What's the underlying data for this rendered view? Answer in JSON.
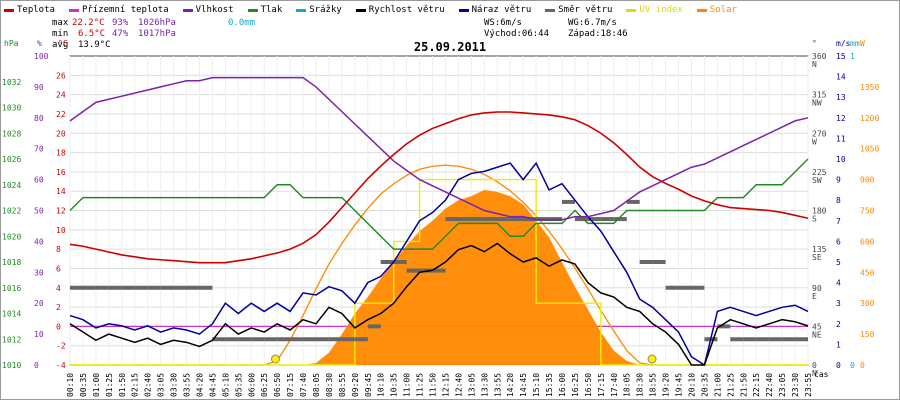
{
  "legend": [
    {
      "label": "Teplota",
      "color": "#cc0000"
    },
    {
      "label": "Přízemní teplota",
      "color": "#cc33cc"
    },
    {
      "label": "Vlhkost",
      "color": "#7a22aa"
    },
    {
      "label": "Tlak",
      "color": "#228822"
    },
    {
      "label": "Srážky",
      "color": "#11aacc"
    },
    {
      "label": "Rychlost větru",
      "color": "#000000"
    },
    {
      "label": "Náraz větru",
      "color": "#000099"
    },
    {
      "label": "Směr větru",
      "color": "#666666"
    },
    {
      "label": "UV index",
      "color": "#dddd00"
    },
    {
      "label": "Solar",
      "color": "#ff8800"
    }
  ],
  "stats": {
    "max_label": "max",
    "max_temp": "22.2°C",
    "max_hum": "93%",
    "max_press": "1026hPa",
    "max_rain": "0.0mm",
    "min_label": "min",
    "min_temp": "6.5°C",
    "min_hum": "47%",
    "min_press": "1017hPa",
    "avg_label": "avg",
    "avg_temp": "13.9°C",
    "ws": "WS:6m/s",
    "wg": "WG:6.7m/s",
    "sunrise": "Východ:06:44",
    "sunset": "Západ:18:46"
  },
  "colors": {
    "temp": "#cc0000",
    "hum": "#7a22aa",
    "press": "#228822",
    "gust": "#000099",
    "wind": "#000000",
    "dir": "#666666",
    "uv": "#eeee00",
    "solar": "#ff8800",
    "ground": "#cc33cc",
    "rain": "#11aacc",
    "sun": "#ffee00"
  },
  "chart_data": {
    "type": "line",
    "title": "25.09.2011",
    "xlabel": "čas",
    "x": [
      "00:10",
      "00:25",
      "00:50",
      "01:15",
      "01:40",
      "02:05",
      "02:30",
      "02:55",
      "03:20",
      "03:45",
      "04:10",
      "04:35",
      "05:00",
      "05:25",
      "05:50",
      "06:15",
      "06:40",
      "07:05",
      "07:30",
      "07:55",
      "08:20",
      "08:45",
      "09:10",
      "09:35",
      "10:00",
      "10:25",
      "10:50",
      "11:15",
      "11:40",
      "12:05",
      "12:30",
      "12:55",
      "13:20",
      "13:45",
      "14:10",
      "14:35",
      "15:00",
      "15:25",
      "15:50",
      "16:15",
      "16:40",
      "17:05",
      "17:30",
      "17:55",
      "18:20",
      "18:45",
      "19:10",
      "19:35",
      "20:00",
      "20:25",
      "20:50",
      "21:15",
      "21:40",
      "22:05",
      "22:30",
      "22:55",
      "23:20",
      "23:45"
    ],
    "x_ticks": [
      "00:10",
      "00:35",
      "01:00",
      "01:25",
      "01:50",
      "02:15",
      "02:40",
      "03:05",
      "03:30",
      "03:55",
      "04:20",
      "04:45",
      "05:10",
      "05:35",
      "06:00",
      "06:25",
      "06:50",
      "07:15",
      "07:40",
      "08:05",
      "08:30",
      "08:55",
      "09:20",
      "09:45",
      "10:10",
      "10:35",
      "11:00",
      "11:25",
      "11:50",
      "12:15",
      "12:40",
      "13:05",
      "13:30",
      "13:55",
      "14:20",
      "14:45",
      "15:10",
      "15:35",
      "16:00",
      "16:25",
      "16:50",
      "17:15",
      "17:40",
      "18:05",
      "18:30",
      "18:55",
      "19:20",
      "19:45",
      "20:10",
      "20:35",
      "21:00",
      "21:25",
      "21:50",
      "22:15",
      "22:40",
      "23:05",
      "23:30",
      "23:55"
    ],
    "axes": {
      "press": {
        "label": "hPa",
        "range": [
          1010,
          1034
        ],
        "ticks": [
          "1010",
          "1012",
          "1014",
          "1016",
          "1018",
          "1020",
          "1022",
          "1024",
          "1026",
          "1028",
          "1030",
          "1032"
        ]
      },
      "hum": {
        "label": "%",
        "range": [
          0,
          100
        ],
        "ticks": [
          "0",
          "10",
          "20",
          "30",
          "40",
          "50",
          "60",
          "70",
          "80",
          "90",
          "100"
        ]
      },
      "temp": {
        "label": "°C",
        "range": [
          -4,
          28
        ],
        "ticks": [
          "-4",
          "-2",
          "0",
          "2",
          "4",
          "6",
          "8",
          "10",
          "12",
          "14",
          "16",
          "18",
          "20",
          "22",
          "24",
          "26"
        ]
      },
      "dir": {
        "label": "°",
        "range": [
          0,
          360
        ],
        "ticks": [
          "0",
          "45",
          "90",
          "135",
          "180",
          "225",
          "270",
          "315",
          "360"
        ],
        "names": [
          "N",
          "NE",
          "E",
          "SE",
          "S",
          "SW",
          "W",
          "NW",
          "N"
        ]
      },
      "wind": {
        "label": "m/s",
        "range": [
          0,
          15
        ],
        "ticks": [
          "0",
          "1",
          "2",
          "3",
          "4",
          "5",
          "6",
          "7",
          "8",
          "9",
          "10",
          "11",
          "12",
          "13",
          "14",
          "15"
        ]
      },
      "rain": {
        "label": "mm",
        "range": [
          0,
          1
        ],
        "ticks": [
          "0",
          "1"
        ]
      },
      "solar": {
        "label": "W",
        "range": [
          0,
          1500
        ],
        "ticks": [
          "0",
          "150",
          "300",
          "450",
          "600",
          "750",
          "900",
          "1050",
          "1200",
          "1350",
          "1500"
        ]
      }
    },
    "series": [
      {
        "name": "Teplota",
        "axis": "temp",
        "values": [
          8.5,
          8.3,
          8.0,
          7.7,
          7.4,
          7.2,
          7.0,
          6.9,
          6.8,
          6.7,
          6.6,
          6.6,
          6.6,
          6.8,
          7.0,
          7.3,
          7.6,
          8.0,
          8.6,
          9.5,
          10.8,
          12.3,
          13.8,
          15.3,
          16.6,
          17.8,
          18.9,
          19.8,
          20.5,
          21.0,
          21.5,
          21.9,
          22.1,
          22.2,
          22.2,
          22.1,
          22.0,
          21.9,
          21.7,
          21.4,
          20.8,
          20.0,
          19.0,
          17.8,
          16.5,
          15.5,
          14.8,
          14.2,
          13.5,
          13.0,
          12.6,
          12.3,
          12.2,
          12.1,
          12.0,
          11.8,
          11.5,
          11.2
        ]
      },
      {
        "name": "Vlhkost",
        "axis": "hum",
        "values": [
          79,
          82,
          85,
          86,
          87,
          88,
          89,
          90,
          91,
          92,
          92,
          93,
          93,
          93,
          93,
          93,
          93,
          93,
          93,
          90,
          86,
          82,
          78,
          74,
          70,
          66,
          63,
          60,
          58,
          56,
          54,
          52,
          50,
          49,
          48,
          48,
          47,
          47,
          47,
          48,
          48,
          49,
          50,
          53,
          56,
          58,
          60,
          62,
          64,
          65,
          67,
          69,
          71,
          73,
          75,
          77,
          79,
          80
        ]
      },
      {
        "name": "Tlak",
        "axis": "press",
        "values": [
          1022,
          1023,
          1023,
          1023,
          1023,
          1023,
          1023,
          1023,
          1023,
          1023,
          1023,
          1023,
          1023,
          1023,
          1023,
          1023,
          1024,
          1024,
          1023,
          1023,
          1023,
          1023,
          1022,
          1021,
          1020,
          1019,
          1019,
          1019,
          1019,
          1020,
          1021,
          1021,
          1021,
          1021,
          1020,
          1020,
          1021,
          1021,
          1021,
          1022,
          1021,
          1021,
          1021,
          1022,
          1022,
          1022,
          1022,
          1022,
          1022,
          1022,
          1023,
          1023,
          1023,
          1024,
          1024,
          1024,
          1025,
          1026
        ]
      },
      {
        "name": "Rychlost větru",
        "axis": "wind",
        "values": [
          2.0,
          1.6,
          1.2,
          1.5,
          1.3,
          1.1,
          1.3,
          1.0,
          1.2,
          1.1,
          0.9,
          1.2,
          2.0,
          1.5,
          1.8,
          1.6,
          2.0,
          1.7,
          2.2,
          2.0,
          2.8,
          2.5,
          1.8,
          2.2,
          2.5,
          3.0,
          3.8,
          4.5,
          4.6,
          5.0,
          5.6,
          5.8,
          5.5,
          5.9,
          5.4,
          5.0,
          5.2,
          4.8,
          5.1,
          4.9,
          4.0,
          3.5,
          3.3,
          2.8,
          2.6,
          2.0,
          1.6,
          1.0,
          0.0,
          0.0,
          1.8,
          2.2,
          2.0,
          1.8,
          2.0,
          2.2,
          2.1,
          1.9
        ]
      },
      {
        "name": "Náraz větru",
        "axis": "wind",
        "values": [
          2.4,
          2.2,
          1.8,
          2.0,
          1.9,
          1.7,
          1.9,
          1.6,
          1.8,
          1.7,
          1.5,
          2.0,
          3.0,
          2.5,
          3.0,
          2.6,
          3.0,
          2.6,
          3.5,
          3.4,
          3.8,
          3.6,
          3.0,
          4.0,
          4.3,
          5.0,
          6.0,
          7.0,
          7.4,
          8.0,
          9.0,
          9.3,
          9.4,
          9.6,
          9.8,
          9.0,
          9.8,
          8.5,
          8.8,
          8.0,
          7.2,
          6.5,
          5.5,
          4.5,
          3.2,
          2.8,
          2.2,
          1.6,
          0.4,
          0.0,
          2.6,
          2.8,
          2.6,
          2.4,
          2.6,
          2.8,
          2.9,
          2.6
        ]
      },
      {
        "name": "Solar",
        "axis": "solar",
        "values": [
          0,
          0,
          0,
          0,
          0,
          0,
          0,
          0,
          0,
          0,
          0,
          0,
          0,
          0,
          0,
          0,
          0,
          0,
          0,
          10,
          60,
          150,
          250,
          330,
          420,
          500,
          580,
          650,
          700,
          760,
          800,
          820,
          850,
          840,
          820,
          780,
          700,
          620,
          500,
          380,
          270,
          160,
          70,
          20,
          0,
          0,
          0,
          0,
          0,
          0,
          0,
          0,
          0,
          0,
          0,
          0,
          0,
          0
        ]
      },
      {
        "name": "Směr větru",
        "axis": "dir",
        "values": [
          90,
          90,
          90,
          90,
          90,
          90,
          90,
          90,
          90,
          90,
          90,
          30,
          30,
          30,
          30,
          30,
          30,
          30,
          30,
          30,
          30,
          30,
          30,
          45,
          120,
          120,
          110,
          110,
          110,
          170,
          170,
          170,
          170,
          170,
          170,
          170,
          170,
          170,
          190,
          170,
          170,
          170,
          170,
          190,
          120,
          120,
          90,
          90,
          90,
          30,
          45,
          30,
          30,
          30,
          30,
          30,
          30,
          30
        ]
      },
      {
        "name": "UV index",
        "axis": "solar",
        "values": [
          0,
          0,
          0,
          0,
          0,
          0,
          0,
          0,
          0,
          0,
          0,
          0,
          0,
          0,
          0,
          0,
          0,
          0,
          0,
          0,
          0,
          0,
          300,
          300,
          300,
          600,
          600,
          900,
          900,
          900,
          900,
          900,
          900,
          900,
          900,
          900,
          300,
          300,
          300,
          300,
          300,
          0,
          0,
          0,
          0,
          0,
          0,
          0,
          0,
          0,
          0,
          0,
          0,
          0,
          0,
          0,
          0,
          0
        ]
      },
      {
        "name": "Solar max",
        "axis": "solar",
        "values": [
          0,
          0,
          0,
          0,
          0,
          0,
          0,
          0,
          0,
          0,
          0,
          0,
          0,
          0,
          0,
          0,
          20,
          120,
          240,
          370,
          490,
          590,
          680,
          760,
          830,
          880,
          920,
          950,
          965,
          970,
          965,
          950,
          925,
          890,
          845,
          790,
          725,
          650,
          565,
          470,
          370,
          265,
          165,
          70,
          10,
          0,
          0,
          0,
          0,
          0,
          0,
          0,
          0,
          0,
          0,
          0,
          0,
          0
        ]
      }
    ]
  }
}
